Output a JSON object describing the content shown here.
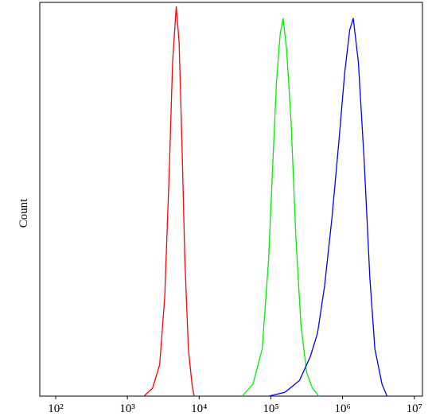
{
  "chart_data": {
    "type": "line",
    "x_scale": "log",
    "ylabel": "Count",
    "xlim": [
      60,
      13000000
    ],
    "ylim": [
      0,
      100
    ],
    "xticks": [
      {
        "value": 100,
        "label": "10²"
      },
      {
        "value": 1000,
        "label": "10³"
      },
      {
        "value": 10000,
        "label": "10⁴"
      },
      {
        "value": 100000,
        "label": "10⁵"
      },
      {
        "value": 1000000,
        "label": "10⁶"
      },
      {
        "value": 10000000,
        "label": "10⁷"
      }
    ],
    "series": [
      {
        "color": "#ff0000",
        "x": [
          1700,
          2240,
          2820,
          3310,
          3800,
          4270,
          4790,
          5250,
          5750,
          6310,
          7080,
          7940,
          8510
        ],
        "values": [
          0,
          2,
          8,
          25,
          55,
          85,
          99,
          90,
          65,
          35,
          12,
          3,
          0
        ]
      },
      {
        "color": "#00ee00",
        "x": [
          39800,
          56200,
          75900,
          93300,
          107000,
          120000,
          135000,
          148000,
          166000,
          191000,
          224000,
          263000,
          316000,
          380000,
          468000
        ],
        "values": [
          0,
          3,
          12,
          35,
          60,
          80,
          92,
          96,
          88,
          70,
          40,
          18,
          6,
          2,
          0
        ]
      },
      {
        "color": "#0000ff",
        "x": [
          93300,
          158000,
          251000,
          355000,
          447000,
          562000,
          708000,
          891000,
          1070000,
          1260000,
          1410000,
          1660000,
          2000000,
          2400000,
          2820000,
          3550000,
          4170000
        ],
        "values": [
          0,
          1,
          4,
          10,
          16,
          28,
          45,
          65,
          82,
          93,
          96,
          85,
          60,
          30,
          12,
          3,
          0
        ]
      }
    ]
  }
}
